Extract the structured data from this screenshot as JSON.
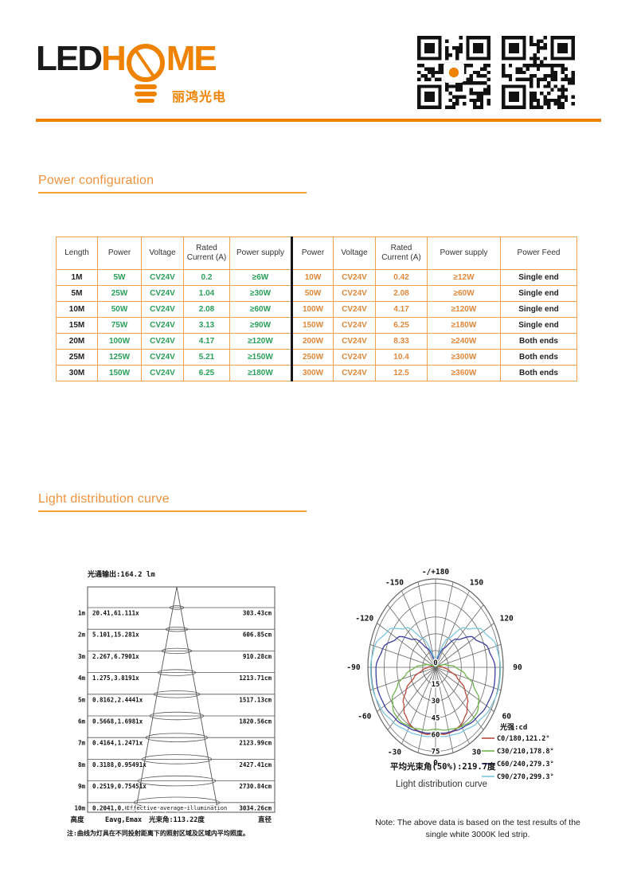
{
  "brand": {
    "logo_led": "LED",
    "logo_h": "H",
    "logo_me": "ME",
    "logo_cn": "丽鸿光电",
    "accent": "#EF8200"
  },
  "icons": {
    "bulb": "lightbulb-logo-icon",
    "qr_left": "qr-code",
    "qr_right": "qr-code"
  },
  "sections": {
    "power_title": "Power configuration",
    "light_title": "Light distribution curve"
  },
  "power_table": {
    "headers": [
      "Length",
      "Power",
      "Voltage",
      "Rated Current (A)",
      "Power supply",
      "Power",
      "Voltage",
      "Rated Current (A)",
      "Power supply",
      "Power Feed"
    ],
    "rows": [
      [
        "1M",
        "5W",
        "CV24V",
        "0.2",
        "≥6W",
        "10W",
        "CV24V",
        "0.42",
        "≥12W",
        "Single end"
      ],
      [
        "5M",
        "25W",
        "CV24V",
        "1.04",
        "≥30W",
        "50W",
        "CV24V",
        "2.08",
        "≥60W",
        "Single end"
      ],
      [
        "10M",
        "50W",
        "CV24V",
        "2.08",
        "≥60W",
        "100W",
        "CV24V",
        "4.17",
        "≥120W",
        "Single end"
      ],
      [
        "15M",
        "75W",
        "CV24V",
        "3.13",
        "≥90W",
        "150W",
        "CV24V",
        "6.25",
        "≥180W",
        "Single end"
      ],
      [
        "20M",
        "100W",
        "CV24V",
        "4.17",
        "≥120W",
        "200W",
        "CV24V",
        "8.33",
        "≥240W",
        "Both ends"
      ],
      [
        "25M",
        "125W",
        "CV24V",
        "5.21",
        "≥150W",
        "250W",
        "CV24V",
        "10.4",
        "≥300W",
        "Both ends"
      ],
      [
        "30M",
        "150W",
        "CV24V",
        "6.25",
        "≥180W",
        "300W",
        "CV24V",
        "12.5",
        "≥360W",
        "Both ends"
      ]
    ],
    "colors": {
      "left_group": "#2BA05A",
      "right_group": "#E2883A",
      "border": "#EFA24E"
    }
  },
  "chart_data": [
    {
      "type": "table",
      "name": "illumination-cone-diagram",
      "title": "光通输出:164.2 lm",
      "rows": [
        {
          "height": "1m",
          "eavg_emax": "20.41,61.111x",
          "diameter": "303.43cm"
        },
        {
          "height": "2m",
          "eavg_emax": "5.101,15.281x",
          "diameter": "606.85cm"
        },
        {
          "height": "3m",
          "eavg_emax": "2.267,6.7901x",
          "diameter": "910.28cm"
        },
        {
          "height": "4m",
          "eavg_emax": "1.275,3.8191x",
          "diameter": "1213.71cm"
        },
        {
          "height": "5m",
          "eavg_emax": "0.8162,2.4441x",
          "diameter": "1517.13cm"
        },
        {
          "height": "6m",
          "eavg_emax": "0.5668,1.6981x",
          "diameter": "1820.56cm"
        },
        {
          "height": "7m",
          "eavg_emax": "0.4164,1.2471x",
          "diameter": "2123.99cm"
        },
        {
          "height": "8m",
          "eavg_emax": "0.3188,0.95491x",
          "diameter": "2427.41cm"
        },
        {
          "height": "9m",
          "eavg_emax": "0.2519,0.75451x",
          "diameter": "2730.84cm"
        },
        {
          "height": "10m",
          "eavg_emax": "0.2041,0.61111x",
          "diameter": "3034.26cm"
        }
      ],
      "footer": {
        "col1": "高度",
        "col2": "Eavg,Emax",
        "col3": "光束角:113.22度",
        "col4": "直径"
      },
      "cone_label": "Effective average illumination",
      "footnote": "注:曲线为灯具在不同投射距离下的照射区域及区域内平均照度。"
    },
    {
      "type": "line",
      "name": "polar-light-distribution-curve",
      "angle_labels_right": [
        "150",
        "120",
        "90",
        "60",
        "30"
      ],
      "angle_labels_left": [
        "-150",
        "-120",
        "-90",
        "-60",
        "-30"
      ],
      "angle_label_top": "-/+180",
      "angle_label_bottom": "0",
      "ring_labels": [
        "15",
        "30",
        "45",
        "60",
        "75"
      ],
      "center_label": "0",
      "legend_title": "光强:cd",
      "series": [
        {
          "name": "C0/180,121.2°",
          "color": "#BA4A3C",
          "profile": [
            [
              0,
              0.74
            ],
            [
              10,
              0.77
            ],
            [
              20,
              0.77
            ],
            [
              30,
              0.75
            ],
            [
              40,
              0.7
            ],
            [
              50,
              0.62
            ],
            [
              60,
              0.5
            ],
            [
              70,
              0.34
            ],
            [
              80,
              0.2
            ],
            [
              90,
              0.11
            ],
            [
              100,
              0.06
            ],
            [
              110,
              0.03
            ],
            [
              120,
              0.02
            ],
            [
              140,
              0.01
            ],
            [
              160,
              0.005
            ],
            [
              180,
              0
            ]
          ]
        },
        {
          "name": "C30/210,178.8°",
          "color": "#6FB44D",
          "profile": [
            [
              0,
              0.7
            ],
            [
              15,
              0.73
            ],
            [
              30,
              0.77
            ],
            [
              40,
              0.8
            ],
            [
              50,
              0.8
            ],
            [
              60,
              0.74
            ],
            [
              70,
              0.6
            ],
            [
              80,
              0.44
            ],
            [
              90,
              0.3
            ],
            [
              100,
              0.16
            ],
            [
              110,
              0.07
            ],
            [
              120,
              0.03
            ],
            [
              140,
              0.01
            ],
            [
              160,
              0.005
            ],
            [
              180,
              0
            ]
          ]
        },
        {
          "name": "C60/240,279.3°",
          "color": "#3C3F9E",
          "profile": [
            [
              0,
              0.74
            ],
            [
              15,
              0.76
            ],
            [
              30,
              0.79
            ],
            [
              45,
              0.83
            ],
            [
              60,
              0.87
            ],
            [
              75,
              0.89
            ],
            [
              90,
              0.88
            ],
            [
              105,
              0.81
            ],
            [
              120,
              0.66
            ],
            [
              135,
              0.45
            ],
            [
              150,
              0.25
            ],
            [
              165,
              0.09
            ],
            [
              180,
              0
            ]
          ]
        },
        {
          "name": "C90/270,299.3°",
          "color": "#7BC6DE",
          "profile": [
            [
              0,
              0.78
            ],
            [
              15,
              0.8
            ],
            [
              30,
              0.83
            ],
            [
              45,
              0.88
            ],
            [
              60,
              0.93
            ],
            [
              75,
              0.96
            ],
            [
              90,
              0.96
            ],
            [
              105,
              0.93
            ],
            [
              120,
              0.82
            ],
            [
              135,
              0.63
            ],
            [
              150,
              0.38
            ],
            [
              165,
              0.14
            ],
            [
              180,
              0
            ]
          ]
        }
      ],
      "avg_beam_label": "平均光束角(50%):219.7度",
      "caption": "Light distribution curve"
    }
  ],
  "note": {
    "line1": "Note: The above data is based on the test results of the",
    "line2": "single white 3000K led strip."
  }
}
